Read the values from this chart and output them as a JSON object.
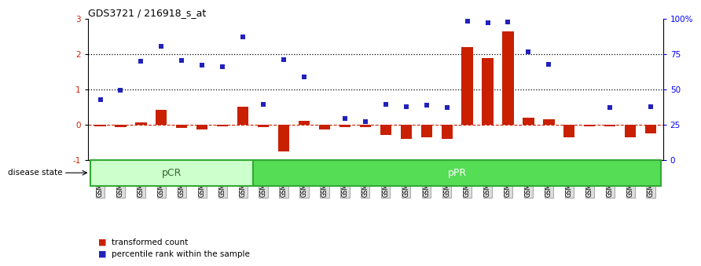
{
  "title": "GDS3721 / 216918_s_at",
  "samples": [
    "GSM559062",
    "GSM559063",
    "GSM559064",
    "GSM559065",
    "GSM559066",
    "GSM559067",
    "GSM559068",
    "GSM559069",
    "GSM559042",
    "GSM559043",
    "GSM559044",
    "GSM559045",
    "GSM559046",
    "GSM559047",
    "GSM559048",
    "GSM559049",
    "GSM559050",
    "GSM559051",
    "GSM559052",
    "GSM559053",
    "GSM559054",
    "GSM559055",
    "GSM559056",
    "GSM559057",
    "GSM559058",
    "GSM559059",
    "GSM559060",
    "GSM559061"
  ],
  "transformed_count": [
    -0.04,
    -0.07,
    0.07,
    0.42,
    -0.08,
    -0.14,
    -0.05,
    0.5,
    -0.07,
    -0.76,
    0.12,
    -0.14,
    -0.07,
    -0.07,
    -0.3,
    -0.4,
    -0.35,
    -0.4,
    2.2,
    1.9,
    2.65,
    0.2,
    0.15,
    -0.35,
    -0.04,
    -0.04,
    -0.35,
    -0.25
  ],
  "percentile_rank_left_scale": [
    0.72,
    0.97,
    1.8,
    2.22,
    1.82,
    1.7,
    1.65,
    2.5,
    0.58,
    1.85,
    1.35,
    null,
    0.18,
    0.08,
    0.58,
    0.52,
    0.55,
    0.48,
    2.93,
    2.9,
    2.92,
    2.07,
    1.72,
    null,
    null,
    0.48,
    null,
    0.52
  ],
  "pCR_count": 8,
  "bar_color": "#c82000",
  "dot_color": "#2222bb",
  "ylim": [
    -1,
    3
  ],
  "yticks_left": [
    -1,
    0,
    1,
    2,
    3
  ],
  "right_yticks_pct": [
    0,
    25,
    50,
    75,
    100
  ],
  "dotted_lines": [
    1.0,
    2.0
  ],
  "zeroline_color": "#cc2200",
  "bg_color": "#ffffff",
  "pcr_fill": "#ccffcc",
  "ppr_fill": "#55dd55",
  "group_border": "#33aa33",
  "tick_label_bg": "#dddddd",
  "tick_label_border": "#888888",
  "legend_items": [
    "transformed count",
    "percentile rank within the sample"
  ]
}
